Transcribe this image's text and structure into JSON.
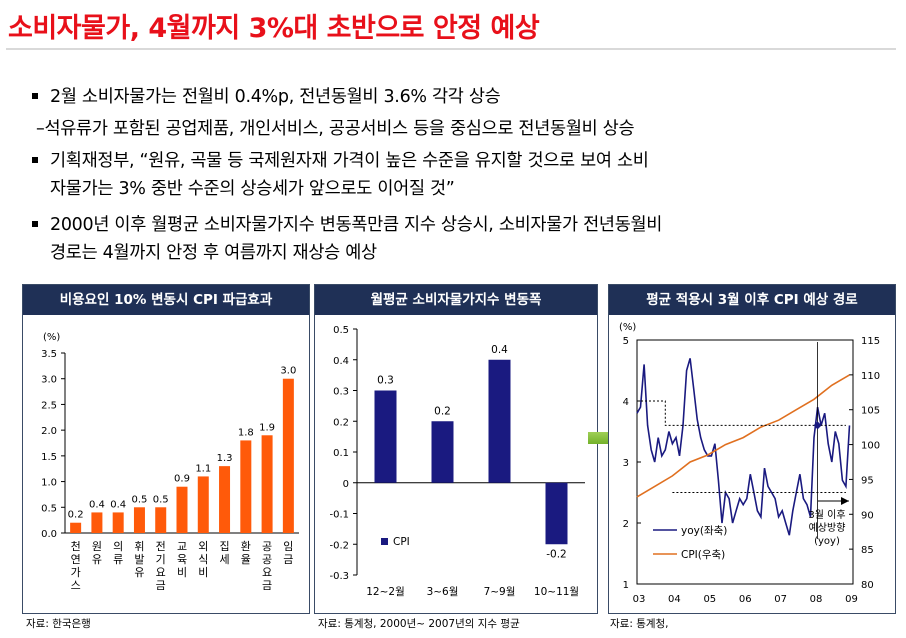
{
  "title": "소비자물가, 4월까지 3%대 초반으로 안정 예상",
  "bullets": [
    {
      "marker": "square",
      "lines": [
        "2월 소비자물가는 전월비 0.4%p, 전년동월비 3.6% 각각 상승"
      ]
    },
    {
      "marker": "dash",
      "lines": [
        "–석유류가 포함된 공업제품, 개인서비스, 공공서비스 등을 중심으로 전년동월비 상승"
      ]
    },
    {
      "marker": "square",
      "lines": [
        "기획재정부, “원유, 곡물 등 국제원자재 가격이 높은 수준을 유지할 것으로 보여 소비",
        "자물가는 3% 중반 수준의 상승세가 앞으로도 이어질 것”"
      ]
    },
    {
      "marker": "square",
      "lines": [
        "2000년 이후 월평균 소비자물가지수 변동폭만큼 지수 상승시, 소비자물가 전년동월비",
        "경로는 4월까지 안정 후 여름까지 재상승 예상"
      ]
    }
  ],
  "panels": [
    {
      "header": "비용요인 10% 변동시 CPI 파급효과",
      "source": "자료: 한국은행"
    },
    {
      "header": "월평균 소비자물가지수 변동폭",
      "source": "자료: 통계청, 2000년~ 2007년의 지수 평균"
    },
    {
      "header": "평균 적용시 3월 이후 CPI 예상 경로",
      "source": "자료: 통계청,"
    }
  ],
  "chart_data": [
    {
      "type": "bar",
      "yunit": "(%)",
      "ylim": [
        0,
        3.5
      ],
      "yticks": [
        "0.0",
        "0.5",
        "1.0",
        "1.5",
        "2.0",
        "2.5",
        "3.0",
        "3.5"
      ],
      "categories": [
        "천연가스",
        "원유",
        "의류",
        "휘발유",
        "전기요금",
        "교육비",
        "외식비",
        "집세",
        "환율",
        "공공요금",
        "임금"
      ],
      "values": [
        0.2,
        0.4,
        0.4,
        0.5,
        0.5,
        0.9,
        1.1,
        1.3,
        1.8,
        1.9,
        3.0
      ],
      "labels": [
        "0.2",
        "0.4",
        "0.4",
        "0.5",
        "0.5",
        "0.9",
        "1.1",
        "1.3",
        "1.8",
        "1.9",
        "3.0"
      ],
      "color": "#ff5a0a"
    },
    {
      "type": "bar",
      "ylim": [
        -0.3,
        0.5
      ],
      "yticks": [
        "0.5",
        "0.4",
        "0.3",
        "0.2",
        "0.1",
        "0",
        "-0.1",
        "-0.2",
        "-0.3"
      ],
      "categories": [
        "12~2월",
        "3~6월",
        "7~9월",
        "10~11월"
      ],
      "series": [
        {
          "name": "CPI",
          "values": [
            0.3,
            0.2,
            0.4,
            -0.2
          ]
        }
      ],
      "labels": [
        "0.3",
        "0.2",
        "0.4",
        "-0.2"
      ],
      "color": "#1a1a80"
    },
    {
      "type": "line",
      "yunit_left": "(%)",
      "ylim_left": [
        1,
        5
      ],
      "yticks_left": [
        "5",
        "4",
        "3",
        "2",
        "1"
      ],
      "ylim_right": [
        80,
        115
      ],
      "yticks_right": [
        "115",
        "110",
        "105",
        "100",
        "95",
        "90",
        "85",
        "80"
      ],
      "xticks": [
        "03",
        "04",
        "05",
        "06",
        "07",
        "08",
        "09"
      ],
      "series": [
        {
          "name": "yoy(좌축)",
          "color": "#1a1a80",
          "axis": "left",
          "x": [
            2003.0,
            2003.1,
            2003.2,
            2003.3,
            2003.4,
            2003.5,
            2003.6,
            2003.7,
            2003.8,
            2003.9,
            2004.0,
            2004.1,
            2004.2,
            2004.3,
            2004.4,
            2004.5,
            2004.6,
            2004.7,
            2004.8,
            2004.9,
            2005.0,
            2005.1,
            2005.2,
            2005.3,
            2005.4,
            2005.5,
            2005.6,
            2005.7,
            2005.8,
            2005.9,
            2006.0,
            2006.1,
            2006.2,
            2006.3,
            2006.4,
            2006.5,
            2006.6,
            2006.7,
            2006.8,
            2006.9,
            2007.0,
            2007.1,
            2007.2,
            2007.3,
            2007.4,
            2007.5,
            2007.6,
            2007.7,
            2007.8,
            2007.9,
            2008.0,
            2008.1,
            2008.2,
            2008.3,
            2008.4,
            2008.5,
            2008.6,
            2008.7,
            2008.8,
            2008.9,
            2009.0
          ],
          "y": [
            3.8,
            3.9,
            4.6,
            3.6,
            3.2,
            3.0,
            3.4,
            3.1,
            3.2,
            3.5,
            3.3,
            3.4,
            3.1,
            3.6,
            4.5,
            4.7,
            4.2,
            3.7,
            3.4,
            3.2,
            3.1,
            3.1,
            3.3,
            2.7,
            2.0,
            2.5,
            2.4,
            2.0,
            2.2,
            2.4,
            2.3,
            2.4,
            2.8,
            2.5,
            2.2,
            2.1,
            2.9,
            2.6,
            2.5,
            2.4,
            2.1,
            2.2,
            2.0,
            1.8,
            2.2,
            2.5,
            2.8,
            2.4,
            2.3,
            2.1,
            3.4,
            3.9,
            3.6,
            3.8,
            3.3,
            3.0,
            3.5,
            3.3,
            2.7,
            2.6,
            3.6
          ]
        },
        {
          "name": "CPI(우축)",
          "color": "#e07020",
          "axis": "right",
          "x": [
            2003.0,
            2003.5,
            2004.0,
            2004.5,
            2005.0,
            2005.5,
            2006.0,
            2006.5,
            2007.0,
            2007.5,
            2008.0,
            2008.5,
            2009.0
          ],
          "y": [
            92.5,
            94,
            95.5,
            97.5,
            98.5,
            100,
            101,
            102.5,
            103.5,
            105,
            106.5,
            108.5,
            110
          ]
        },
        {
          "name": "",
          "style": "dotted",
          "color": "#000",
          "axis": "left",
          "x": [
            2003.0,
            2003.8,
            2003.8,
            2008.9
          ],
          "y": [
            4.0,
            4.0,
            3.6,
            3.6
          ]
        },
        {
          "name": "",
          "style": "dotted",
          "color": "#000",
          "axis": "left",
          "x": [
            2004.0,
            2008.9
          ],
          "y": [
            2.5,
            2.5
          ]
        }
      ],
      "annotation": [
        "3월 이후",
        "예상방향",
        "(yoy)"
      ]
    }
  ]
}
